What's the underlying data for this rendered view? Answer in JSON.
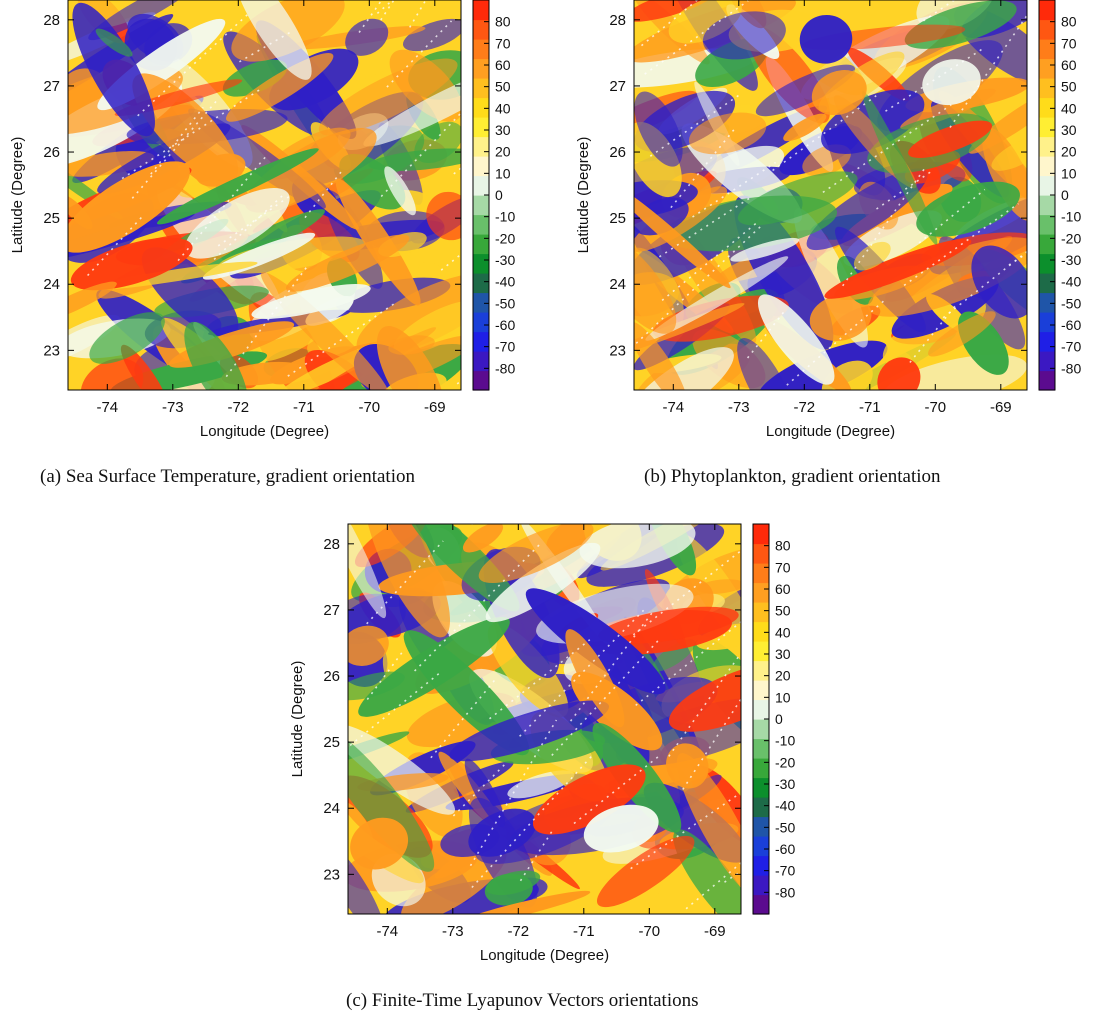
{
  "figure": {
    "captions": [
      "(a) Sea Surface Temperature, gradient orientation",
      "(b) Phytoplankton, gradient orientation",
      "(c) Finite-Time Lyapunov Vectors orientations"
    ]
  },
  "colors": {
    "scale": [
      "#5b0b8f",
      "#3b18c2",
      "#1f1fe6",
      "#1a3fd9",
      "#1f55a8",
      "#1d6b48",
      "#0c8f2c",
      "#38a83a",
      "#69c06a",
      "#a6d9a6",
      "#e8f5e6",
      "#fff6cc",
      "#fff18a",
      "#ffee33",
      "#ffdc1a",
      "#ffbf1f",
      "#ff9f21",
      "#ff7d19",
      "#ff5712",
      "#ff2a0a"
    ],
    "regime_blue": "#2f1fc6",
    "regime_orange": "#ff9a1e",
    "regime_yellow": "#ffd326",
    "regime_green": "#3aa845",
    "regime_red": "#ff3a10",
    "regime_pale": "#f3faf0"
  },
  "chart_data": [
    {
      "type": "heatmap",
      "title": "",
      "xlabel": "Longitude (Degree)",
      "ylabel": "Latitude (Degree)",
      "xlim": [
        -74.6,
        -68.6
      ],
      "ylim": [
        22.4,
        28.3
      ],
      "xticks": [
        -74,
        -73,
        -72,
        -71,
        -70,
        -69
      ],
      "yticks": [
        23,
        24,
        25,
        26,
        27,
        28
      ],
      "colorbar": {
        "range": [
          -90,
          90
        ],
        "ticks": [
          80,
          70,
          60,
          50,
          40,
          30,
          20,
          10,
          0,
          -10,
          -20,
          -30,
          -40,
          -50,
          -60,
          -70,
          -80
        ]
      },
      "seed": 11
    },
    {
      "type": "heatmap",
      "title": "",
      "xlabel": "Longitude (Degree)",
      "ylabel": "Latitude (Degree)",
      "xlim": [
        -74.6,
        -68.6
      ],
      "ylim": [
        22.4,
        28.3
      ],
      "xticks": [
        -74,
        -73,
        -72,
        -71,
        -70,
        -69
      ],
      "yticks": [
        23,
        24,
        25,
        26,
        27,
        28
      ],
      "colorbar": {
        "range": [
          -90,
          90
        ],
        "ticks": [
          80,
          70,
          60,
          50,
          40,
          30,
          20,
          10,
          0,
          -10,
          -20,
          -30,
          -40,
          -50,
          -60,
          -70,
          -80
        ]
      },
      "seed": 23
    },
    {
      "type": "heatmap",
      "title": "",
      "xlabel": "Longitude (Degree)",
      "ylabel": "Latitude (Degree)",
      "xlim": [
        -74.6,
        -68.6
      ],
      "ylim": [
        22.4,
        28.3
      ],
      "xticks": [
        -74,
        -73,
        -72,
        -71,
        -70,
        -69
      ],
      "yticks": [
        23,
        24,
        25,
        26,
        27,
        28
      ],
      "colorbar": {
        "range": [
          -90,
          90
        ],
        "ticks": [
          80,
          70,
          60,
          50,
          40,
          30,
          20,
          10,
          0,
          -10,
          -20,
          -30,
          -40,
          -50,
          -60,
          -70,
          -80
        ]
      },
      "seed": 37
    }
  ]
}
